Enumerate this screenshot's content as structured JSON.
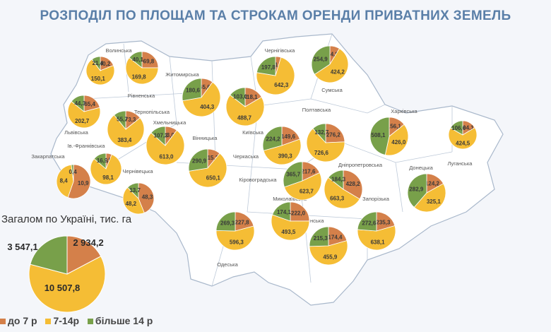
{
  "title": "РОЗПОДІЛ ПО ПЛОЩАМ ТА СТРОКАМ ОРЕНДИ ПРИВАТНИХ ЗЕМЕЛЬ",
  "total_caption": "Загалом по Україні, тис. га",
  "colors": {
    "short": "#d4804a",
    "mid": "#f5bd35",
    "long": "#78a04a",
    "map_fill": "#ffffff",
    "map_border": "#a9b8cb"
  },
  "legend": [
    {
      "label": "до 7 р",
      "color": "#d4804a"
    },
    {
      "label": "7-14р",
      "color": "#f5bd35"
    },
    {
      "label": "більше 14 р",
      "color": "#78a04a"
    }
  ],
  "chart_data": {
    "type": "pie",
    "unit": "тис. га",
    "series_names": [
      "до 7 р",
      "7-14р",
      "більше 14 р"
    ],
    "total": {
      "label": "Загалом по Україні",
      "values": [
        2934.2,
        10507.8,
        3547.1
      ],
      "display": [
        "2 934,2",
        "10 507,8",
        "3 547,1"
      ]
    },
    "regions": [
      {
        "name": "Волинська",
        "values": [
          40.2,
          150.1,
          21.4
        ],
        "display": [
          "40,2",
          "150,1",
          "21,4"
        ]
      },
      {
        "name": "Рівненська",
        "values": [
          69.8,
          169.8,
          40.1
        ],
        "display": [
          "69,8",
          "169,8",
          "40,1"
        ]
      },
      {
        "name": "Житомирська",
        "values": [
          65.6,
          404.3,
          180.6
        ],
        "display": [
          "65,6",
          "404,3",
          "180,6"
        ]
      },
      {
        "name": "Київська",
        "values": [
          118.1,
          488.7,
          103.0
        ],
        "display": [
          "118,1",
          "488,7",
          "103,0"
        ]
      },
      {
        "name": "Чернігівська",
        "values": [
          41.2,
          642.3,
          197.8
        ],
        "display": [
          "41,2",
          "642,3",
          "197,8"
        ]
      },
      {
        "name": "Сумська",
        "values": [
          64.8,
          424.2,
          254.9
        ],
        "display": [
          "64,8",
          "424,2",
          "254,9"
        ]
      },
      {
        "name": "Львівська",
        "values": [
          65.4,
          202.7,
          44.3
        ],
        "display": [
          "65,4",
          "202,7",
          "44,3"
        ]
      },
      {
        "name": "Тернопільська",
        "values": [
          73.3,
          383.4,
          55.7
        ],
        "display": [
          "73,3",
          "383,4",
          "55,7"
        ]
      },
      {
        "name": "Хмельницька",
        "values": [
          83.0,
          613.0,
          107.3
        ],
        "display": [
          "83,0",
          "613,0",
          "107,3"
        ]
      },
      {
        "name": "Вінницька",
        "values": [
          115.1,
          650.1,
          290.9
        ],
        "display": [
          "115,1",
          "650,1",
          "290,9"
        ]
      },
      {
        "name": "Черкаська",
        "values": [
          149.6,
          390.3,
          224.2
        ],
        "display": [
          "149,6",
          "390,3",
          "224,2"
        ]
      },
      {
        "name": "Полтавська",
        "values": [
          276.2,
          726.6,
          132.7
        ],
        "display": [
          "276,2",
          "726,6",
          "132,7"
        ]
      },
      {
        "name": "Харківська",
        "values": [
          156.1,
          426.0,
          508.1
        ],
        "display": [
          "156,1",
          "426,0",
          "508,1"
        ]
      },
      {
        "name": "Луганська",
        "values": [
          104.1,
          424.5,
          106.6
        ],
        "display": [
          "104,1",
          "424,5",
          "106,6"
        ]
      },
      {
        "name": "Закарпатська",
        "values": [
          10.9,
          8.4,
          0.4
        ],
        "display": [
          "10,9",
          "8,4",
          "0,4"
        ]
      },
      {
        "name": "Ів.-Франківська",
        "values": [
          7.5,
          98.1,
          16.9
        ],
        "display": [
          "7,5",
          "98,1",
          "16,9"
        ]
      },
      {
        "name": "Чернівецька",
        "values": [
          48.3,
          48.2,
          13.7
        ],
        "display": [
          "48,3",
          "48,2",
          "13,7"
        ]
      },
      {
        "name": "Кіровоградська",
        "values": [
          217.6,
          623.7,
          365.7
        ],
        "display": [
          "217,6",
          "623,7",
          "365,7"
        ]
      },
      {
        "name": "Дніпропетровська",
        "values": [
          428.2,
          663.3,
          184.3
        ],
        "display": [
          "428,2",
          "663,3",
          "184,3"
        ]
      },
      {
        "name": "Донецька",
        "values": [
          124.2,
          325.1,
          282.9
        ],
        "display": [
          "124,2",
          "325,1",
          "282,9"
        ]
      },
      {
        "name": "Миколаївська",
        "values": [
          222.0,
          493.5,
          174.1
        ],
        "display": [
          "222,0",
          "493,5",
          "174,1"
        ]
      },
      {
        "name": "Одеська",
        "values": [
          227.8,
          596.3,
          269.3
        ],
        "display": [
          "227,8",
          "596,3",
          "269,3"
        ]
      },
      {
        "name": "Херсонська",
        "values": [
          174.4,
          455.9,
          215.3
        ],
        "display": [
          "174,4",
          "455,9",
          "215,3"
        ]
      },
      {
        "name": "Запорізька",
        "values": [
          235.3,
          638.1,
          272.6
        ],
        "display": [
          "235,3",
          "638,1",
          "272,6"
        ]
      }
    ]
  }
}
